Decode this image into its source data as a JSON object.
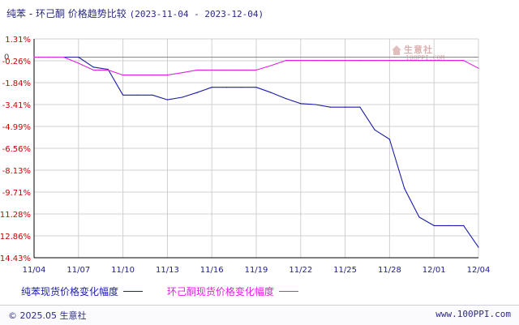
{
  "title": {
    "text": "纯苯 - 环己酮 价格趋势比较",
    "date_range": "(2023-11-04 - 2023-12-04)"
  },
  "watermark": {
    "name": "生意社",
    "url": "100PPI.COM"
  },
  "footer": {
    "copyright": "© 2025.05 生意社",
    "site": "www.100PPI.com"
  },
  "colors": {
    "series_1": "#1c1ca8",
    "series_2": "#e020e0",
    "ytick_label": "#cc0000",
    "xtick_label": "#1c1c90",
    "grid": "#d0d0d0",
    "axis": "#000000"
  },
  "chart_data": {
    "type": "line",
    "title": "纯苯 - 环己酮 价格趋势比较",
    "xlabel": "",
    "ylabel": "",
    "xticks": [
      "11/04",
      "11/07",
      "11/10",
      "11/13",
      "11/16",
      "11/19",
      "11/22",
      "11/25",
      "11/28",
      "12/01",
      "12/04"
    ],
    "yticks": [
      "1.31%",
      "-0.26%",
      "-1.84%",
      "-3.41%",
      "-4.99%",
      "-6.56%",
      "-8.13%",
      "-9.71%",
      "-11.28%",
      "-12.86%",
      "-14.43%"
    ],
    "ylim": [
      -14.43,
      1.31
    ],
    "zero_marker": "0",
    "grid": true,
    "legend_position": "bottom",
    "x": [
      "11/04",
      "11/05",
      "11/06",
      "11/07",
      "11/08",
      "11/09",
      "11/10",
      "11/11",
      "11/12",
      "11/13",
      "11/14",
      "11/15",
      "11/16",
      "11/17",
      "11/18",
      "11/19",
      "11/20",
      "11/21",
      "11/22",
      "11/23",
      "11/24",
      "11/25",
      "11/26",
      "11/27",
      "11/28",
      "11/29",
      "11/30",
      "12/01",
      "12/02",
      "12/03",
      "12/04"
    ],
    "series": [
      {
        "name": "纯苯现货价格变化幅度",
        "values": [
          0.0,
          0.0,
          0.0,
          0.0,
          -0.72,
          -0.88,
          -2.73,
          -2.73,
          -2.73,
          -3.07,
          -2.89,
          -2.55,
          -2.17,
          -2.17,
          -2.17,
          -2.17,
          -2.55,
          -2.98,
          -3.34,
          -3.41,
          -3.6,
          -3.6,
          -3.6,
          -5.23,
          -5.91,
          -9.44,
          -11.51,
          -12.12,
          -12.12,
          -12.12,
          -13.68
        ]
      },
      {
        "name": "环己酮现货价格变化幅度",
        "values": [
          0.0,
          0.0,
          0.0,
          -0.44,
          -0.93,
          -0.93,
          -1.29,
          -1.29,
          -1.29,
          -1.29,
          -1.12,
          -0.93,
          -0.93,
          -0.93,
          -0.93,
          -0.93,
          -0.61,
          -0.24,
          -0.24,
          -0.24,
          -0.24,
          -0.24,
          -0.24,
          -0.24,
          -0.24,
          -0.24,
          -0.24,
          -0.24,
          -0.24,
          -0.24,
          -0.8
        ]
      }
    ]
  }
}
